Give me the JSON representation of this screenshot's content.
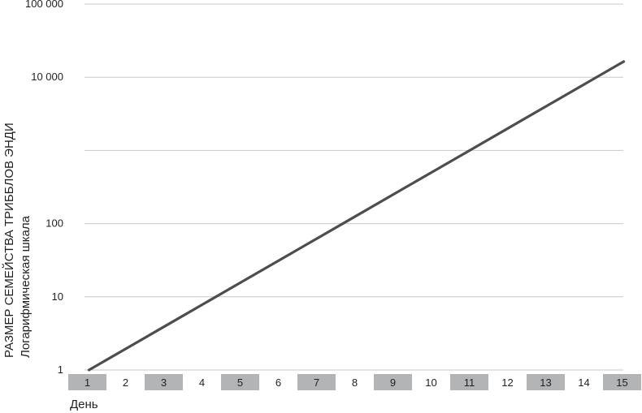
{
  "chart_data": {
    "type": "line",
    "title": "",
    "xlabel": "День",
    "ylabel": "РАЗМЕР СЕМЕЙСТВА ТРИББЛОВ ЭНДИ",
    "ylabel_sub": "Логарифмическая шкала",
    "y_scale": "log",
    "ylim": [
      1,
      100000
    ],
    "y_ticks": [
      {
        "value": 1,
        "label": "1"
      },
      {
        "value": 10,
        "label": "10"
      },
      {
        "value": 100,
        "label": "100"
      },
      {
        "value": 1000,
        "label": ""
      },
      {
        "value": 10000,
        "label": "10 000"
      },
      {
        "value": 100000,
        "label": "100 000"
      }
    ],
    "grid": true,
    "categories": [
      "1",
      "2",
      "3",
      "4",
      "5",
      "6",
      "7",
      "8",
      "9",
      "10",
      "11",
      "12",
      "13",
      "14",
      "15"
    ],
    "series": [
      {
        "values": [
          1,
          2,
          4,
          8,
          16,
          32,
          64,
          128,
          256,
          512,
          1024,
          2048,
          4096,
          8192,
          16384
        ],
        "color": "#4d4d4f"
      }
    ],
    "colors": {
      "line": "#4d4d4f",
      "grid": "#c8c8c8",
      "band_shaded": "#b3b4b6"
    }
  }
}
